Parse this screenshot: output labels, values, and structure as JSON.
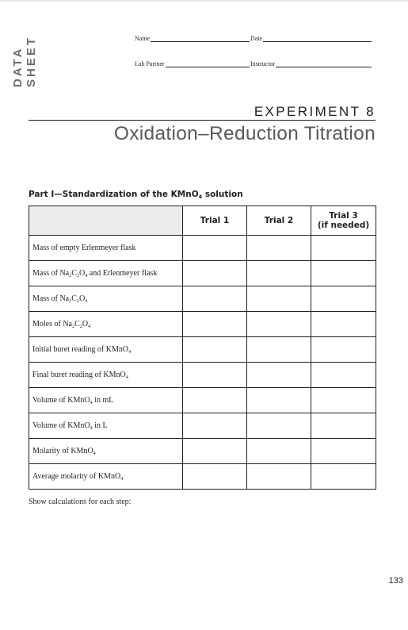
{
  "side_label": {
    "line1": "DATA",
    "line2": "SHEET"
  },
  "fields": {
    "name": "Name",
    "date": "Date",
    "lab_partner": "Lab Partner",
    "instructor": "Instructor"
  },
  "experiment": {
    "number": "EXPERIMENT 8",
    "title": "Oxidation–Reduction Titration"
  },
  "part1": {
    "heading_pre": "Part I—Standardization of the KMnO",
    "heading_sub": "4",
    "heading_post": " solution",
    "columns": [
      "Trial 1",
      "Trial 2",
      "Trial 3",
      "(if needed)"
    ],
    "rows": [
      {
        "parts": [
          {
            "t": "Mass of empty Erlenmeyer flask"
          }
        ]
      },
      {
        "parts": [
          {
            "t": "Mass of Na"
          },
          {
            "s": "2"
          },
          {
            "t": "C"
          },
          {
            "s": "2"
          },
          {
            "t": "O"
          },
          {
            "s": "4"
          },
          {
            "t": " and Erlenmeyer flask"
          }
        ]
      },
      {
        "parts": [
          {
            "t": "Mass of Na"
          },
          {
            "s": "2"
          },
          {
            "t": "C"
          },
          {
            "s": "2"
          },
          {
            "t": "O"
          },
          {
            "s": "4"
          }
        ]
      },
      {
        "parts": [
          {
            "t": "Moles of Na"
          },
          {
            "s": "2"
          },
          {
            "t": "C"
          },
          {
            "s": "2"
          },
          {
            "t": "O"
          },
          {
            "s": "4"
          }
        ]
      },
      {
        "parts": [
          {
            "t": "Initial buret reading of KMnO"
          },
          {
            "s": "4"
          }
        ]
      },
      {
        "parts": [
          {
            "t": "Final buret reading of KMnO"
          },
          {
            "s": "4"
          }
        ]
      },
      {
        "parts": [
          {
            "t": "Volume of KMnO"
          },
          {
            "s": "4"
          },
          {
            "t": " in mL"
          }
        ]
      },
      {
        "parts": [
          {
            "t": "Volume of KMnO"
          },
          {
            "s": "4"
          },
          {
            "t": " in L"
          }
        ]
      },
      {
        "parts": [
          {
            "t": "Molarity of KMnO"
          },
          {
            "s": "4"
          }
        ]
      },
      {
        "parts": [
          {
            "t": "Average molarity of KMnO"
          },
          {
            "s": "4"
          }
        ]
      }
    ]
  },
  "calc_note": "Show calculations for each step:",
  "page_number": "133"
}
